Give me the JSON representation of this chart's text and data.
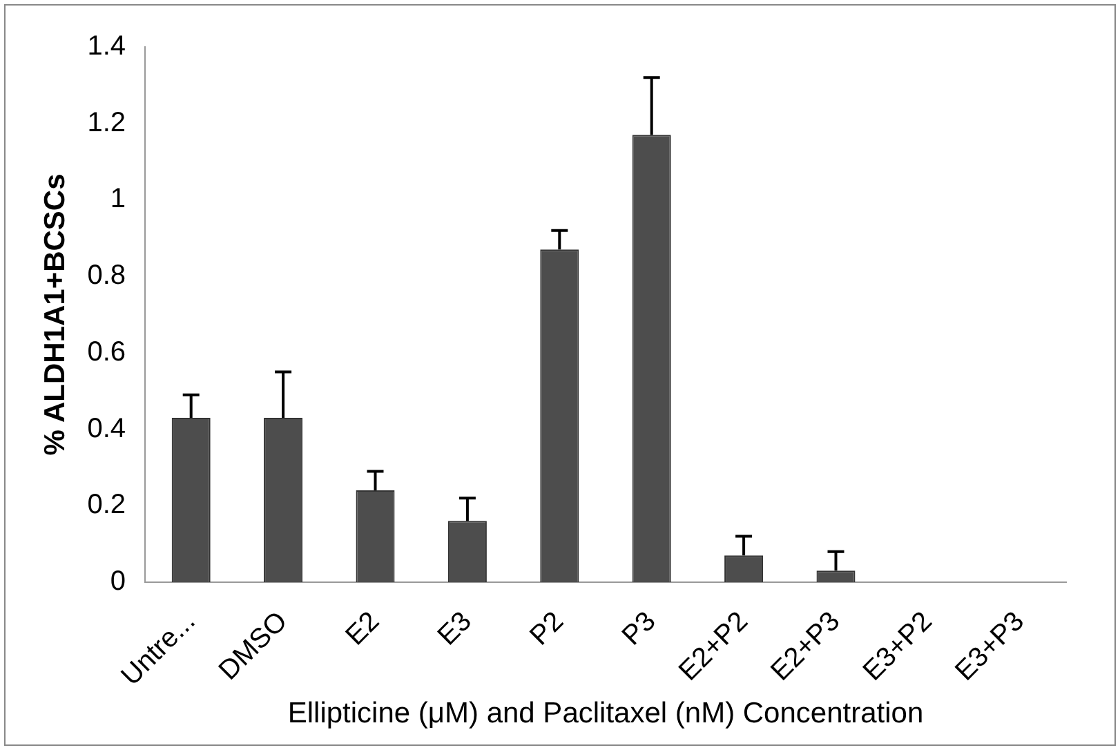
{
  "chart_data": {
    "type": "bar",
    "xlabel": "Ellipticine (μM) and Paclitaxel (nM) Concentration",
    "ylabel": "% ALDH1A1+BCSCs",
    "categories": [
      "Untre...",
      "DMSO",
      "E2",
      "E3",
      "P2",
      "P3",
      "E2+P2",
      "E2+P3",
      "E3+P2",
      "E3+P3"
    ],
    "values": [
      0.43,
      0.43,
      0.24,
      0.16,
      0.87,
      1.17,
      0.07,
      0.03,
      0,
      0
    ],
    "errors": [
      0.06,
      0.12,
      0.05,
      0.06,
      0.05,
      0.15,
      0.05,
      0.05,
      null,
      null
    ],
    "color": "#4d4d4d",
    "ylim": [
      0,
      1.4
    ],
    "yticks": [
      0,
      0.2,
      0.4,
      0.6,
      0.8,
      1,
      1.2,
      1.4
    ],
    "grid": false,
    "legend": false
  }
}
